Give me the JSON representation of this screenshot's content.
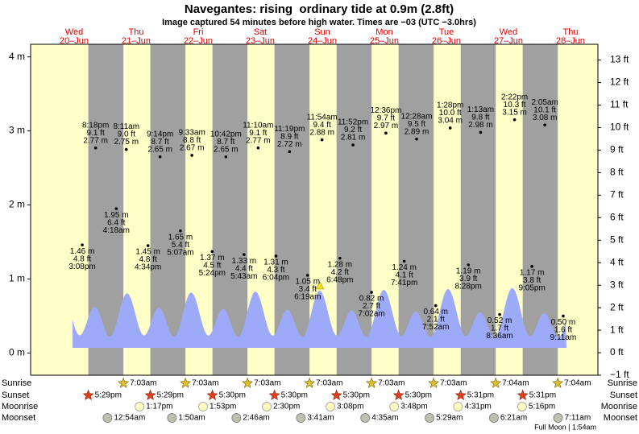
{
  "chart_data": {
    "type": "tide",
    "title": "Navegantes: rising  ordinary tide at 0.9m (2.8ft)",
    "subtitle": "Image captured 54 minutes before high water. Times are −03 (UTC −3.0hrs)",
    "ylim": [
      -0.3,
      4.17
    ],
    "yticks": [
      {
        "value": 0,
        "label": "0 m"
      },
      {
        "value": 1,
        "label": "1 m"
      },
      {
        "value": 2,
        "label": "2 m"
      },
      {
        "value": 3,
        "label": "3 m"
      },
      {
        "value": 4,
        "label": "4 m"
      }
    ],
    "y2lim": [
      -1,
      13.7
    ],
    "y2ticks": [
      {
        "value": -1,
        "label": "−1 ft"
      },
      {
        "value": 0,
        "label": "0 ft"
      },
      {
        "value": 1,
        "label": "1 ft"
      },
      {
        "value": 2,
        "label": "2 ft"
      },
      {
        "value": 3,
        "label": "3 ft"
      },
      {
        "value": 4,
        "label": "4 ft"
      },
      {
        "value": 5,
        "label": "5 ft"
      },
      {
        "value": 6,
        "label": "6 ft"
      },
      {
        "value": 7,
        "label": "7 ft"
      },
      {
        "value": 8,
        "label": "8 ft"
      },
      {
        "value": 9,
        "label": "9 ft"
      },
      {
        "value": 10,
        "label": "10 ft"
      },
      {
        "value": 11,
        "label": "11 ft"
      },
      {
        "value": 12,
        "label": "12 ft"
      },
      {
        "value": 13,
        "label": "13 ft"
      }
    ],
    "row_labels": [
      "Sunrise",
      "Sunset",
      "Moonrise",
      "Moonset"
    ],
    "moon_phase": "Full Moon | 1:54am",
    "days": [
      {
        "dow": "Wed",
        "date": "20–Jun",
        "sunset": "5:29pm",
        "tides": [
          {
            "time": "3:08pm",
            "m": 1.46,
            "m_label": "1.46 m",
            "ft": 4.8,
            "ft_label": "4.8 ft"
          },
          {
            "time": "8:18pm",
            "m": 2.77,
            "m_label": "2.77 m",
            "ft": 9.1,
            "ft_label": "9.1 ft"
          }
        ]
      },
      {
        "dow": "Thu",
        "date": "21–Jun",
        "sunrise": "7:03am",
        "sunset": "5:29pm",
        "moonrise": "1:17pm",
        "moonset": "12:54am",
        "tides": [
          {
            "time": "4:18am",
            "m": 1.95,
            "m_label": "1.95 m",
            "ft": 6.4,
            "ft_label": "6.4 ft"
          },
          {
            "time": "8:11am",
            "m": 2.75,
            "m_label": "2.75 m",
            "ft": 9.0,
            "ft_label": "9.0 ft"
          },
          {
            "time": "4:34pm",
            "m": 1.45,
            "m_label": "1.45 m",
            "ft": 4.8,
            "ft_label": "4.8 ft"
          },
          {
            "time": "9:14pm",
            "m": 2.65,
            "m_label": "2.65 m",
            "ft": 8.7,
            "ft_label": "8.7 ft"
          }
        ]
      },
      {
        "dow": "Fri",
        "date": "22–Jun",
        "sunrise": "7:03am",
        "sunset": "5:30pm",
        "moonrise": "1:53pm",
        "moonset": "1:50am",
        "tides": [
          {
            "time": "5:07am",
            "m": 1.65,
            "m_label": "1.65 m",
            "ft": 5.4,
            "ft_label": "5.4 ft"
          },
          {
            "time": "9:33am",
            "m": 2.67,
            "m_label": "2.67 m",
            "ft": 8.8,
            "ft_label": "8.8 ft"
          },
          {
            "time": "5:24pm",
            "m": 1.37,
            "m_label": "1.37 m",
            "ft": 4.5,
            "ft_label": "4.5 ft"
          },
          {
            "time": "10:42pm",
            "m": 2.65,
            "m_label": "2.65 m",
            "ft": 8.7,
            "ft_label": "8.7 ft"
          }
        ]
      },
      {
        "dow": "Sat",
        "date": "23–Jun",
        "sunrise": "7:03am",
        "sunset": "5:30pm",
        "moonrise": "2:30pm",
        "moonset": "2:46am",
        "tides": [
          {
            "time": "5:43am",
            "m": 1.33,
            "m_label": "1.33 m",
            "ft": 4.4,
            "ft_label": "4.4 ft"
          },
          {
            "time": "11:10am",
            "m": 2.77,
            "m_label": "2.77 m",
            "ft": 9.1,
            "ft_label": "9.1 ft"
          },
          {
            "time": "6:04pm",
            "m": 1.31,
            "m_label": "1.31 m",
            "ft": 4.3,
            "ft_label": "4.3 ft"
          },
          {
            "time": "11:19pm",
            "m": 2.72,
            "m_label": "2.72 m",
            "ft": 8.9,
            "ft_label": "8.9 ft"
          }
        ]
      },
      {
        "dow": "Sun",
        "date": "24–Jun",
        "sunrise": "7:03am",
        "sunset": "5:30pm",
        "moonrise": "3:08pm",
        "moonset": "3:41am",
        "tides": [
          {
            "time": "6:19am",
            "m": 1.05,
            "m_label": "1.05 m",
            "ft": 3.4,
            "ft_label": "3.4 ft"
          },
          {
            "time": "11:54am",
            "m": 2.88,
            "m_label": "2.88 m",
            "ft": 9.4,
            "ft_label": "9.4 ft"
          },
          {
            "time": "6:48pm",
            "m": 1.28,
            "m_label": "1.28 m",
            "ft": 4.2,
            "ft_label": "4.2 ft"
          },
          {
            "time": "11:52pm",
            "m": 2.81,
            "m_label": "2.81 m",
            "ft": 9.2,
            "ft_label": "9.2 ft"
          }
        ]
      },
      {
        "dow": "Mon",
        "date": "25–Jun",
        "sunrise": "7:03am",
        "sunset": "5:30pm",
        "moonrise": "3:48pm",
        "moonset": "4:35am",
        "tides": [
          {
            "time": "7:02am",
            "m": 0.82,
            "m_label": "0.82 m",
            "ft": 2.7,
            "ft_label": "2.7 ft"
          },
          {
            "time": "12:36pm",
            "m": 2.97,
            "m_label": "2.97 m",
            "ft": 9.7,
            "ft_label": "9.7 ft"
          },
          {
            "time": "7:41pm",
            "m": 1.24,
            "m_label": "1.24 m",
            "ft": 4.1,
            "ft_label": "4.1 ft"
          }
        ]
      },
      {
        "dow": "Tue",
        "date": "26–Jun",
        "sunrise": "7:03am",
        "sunset": "5:31pm",
        "moonrise": "4:31pm",
        "moonset": "5:29am",
        "tides": [
          {
            "time": "12:28am",
            "m": 2.89,
            "m_label": "2.89 m",
            "ft": 9.5,
            "ft_label": "9.5 ft"
          },
          {
            "time": "7:52am",
            "m": 0.64,
            "m_label": "0.64 m",
            "ft": 2.1,
            "ft_label": "2.1 ft"
          },
          {
            "time": "1:28pm",
            "m": 3.04,
            "m_label": "3.04 m",
            "ft": 10.0,
            "ft_label": "10.0 ft"
          },
          {
            "time": "8:28pm",
            "m": 1.19,
            "m_label": "1.19 m",
            "ft": 3.9,
            "ft_label": "3.9 ft"
          }
        ]
      },
      {
        "dow": "Wed",
        "date": "27–Jun",
        "sunrise": "7:04am",
        "sunset": "5:31pm",
        "moonrise": "5:16pm",
        "moonset": "6:21am",
        "tides": [
          {
            "time": "1:13am",
            "m": 2.98,
            "m_label": "2.98 m",
            "ft": 9.8,
            "ft_label": "9.8 ft"
          },
          {
            "time": "8:36am",
            "m": 0.52,
            "m_label": "0.52 m",
            "ft": 1.7,
            "ft_label": "1.7 ft"
          },
          {
            "time": "2:22pm",
            "m": 3.15,
            "m_label": "3.15 m",
            "ft": 10.3,
            "ft_label": "10.3 ft"
          },
          {
            "time": "9:05pm",
            "m": 1.17,
            "m_label": "1.17 m",
            "ft": 3.8,
            "ft_label": "3.8 ft"
          }
        ]
      },
      {
        "dow": "Thu",
        "date": "28–Jun",
        "sunrise": "7:04am",
        "moonset": "7:11am",
        "tides": [
          {
            "time": "2:05am",
            "m": 3.08,
            "m_label": "3.08 m",
            "ft": 10.1,
            "ft_label": "10.1 ft"
          },
          {
            "time": "9:11am",
            "m": 0.5,
            "m_label": "0.50 m",
            "ft": 1.6,
            "ft_label": "1.6 ft"
          }
        ]
      }
    ]
  }
}
